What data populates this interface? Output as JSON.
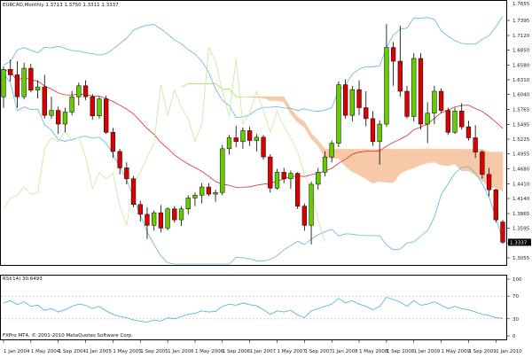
{
  "colors": {
    "background": "#ffffff",
    "bull_candle": "#66cc00",
    "bear_candle": "#dd0000",
    "wick": "#000000",
    "kumo_bull": "#7fe000",
    "kumo_bear": "#f7c9a8",
    "bollinger_band": "#5ab8d8",
    "bollinger_mid": "#d03030",
    "chikou": "#c8e89a",
    "rsi_line": "#5ab8d8",
    "rsi_levels": "#bbbbbb",
    "frame": "#000000",
    "price_marker_bg": "#000000",
    "price_marker_text": "#ffffff"
  },
  "header": {
    "main_title": "EURCAD,Monthly  1.3713 1.3750 1.3311 1.3337",
    "rsi_title": "RSI(14) 30.6493",
    "footer": "FXPro MT4, © 2001-2010 MetaQuotes Software Corp."
  },
  "price_marker": "1.3337",
  "chart_data": {
    "type": "candlestick",
    "title": "EURCAD,Monthly  1.3713 1.3750 1.3311 1.3337",
    "y_axis_ticks": [
      "1.7655",
      "1.7395",
      "1.7120",
      "1.6850",
      "1.6580",
      "1.6310",
      "1.6040",
      "1.5765",
      "1.5495",
      "1.5225",
      "1.4955",
      "1.4680",
      "1.4410",
      "1.4140",
      "1.3865",
      "1.3595",
      "1.3325",
      "1.3055"
    ],
    "ylim": [
      1.3055,
      1.7655
    ],
    "x_axis_labels": [
      "1 Jan 2004",
      "1 May 2004",
      "1 Sep 2004",
      "1 Jan 2005",
      "1 May 2005",
      "1 Sep 2005",
      "1 Jan 2006",
      "1 May 2006",
      "1 Sep 2006",
      "1 Jan 2007",
      "1 May 2007",
      "1 Sep 2007",
      "1 Jan 2008",
      "1 May 2008",
      "1 Sep 2008",
      "1 Jan 2009",
      "1 May 2009",
      "1 Sep 2009",
      "1 Jan 2010"
    ],
    "ohlc": [
      [
        1.6,
        1.655,
        1.58,
        1.65
      ],
      [
        1.65,
        1.668,
        1.628,
        1.64
      ],
      [
        1.64,
        1.665,
        1.58,
        1.6
      ],
      [
        1.6,
        1.662,
        1.595,
        1.652
      ],
      [
        1.652,
        1.66,
        1.608,
        1.612
      ],
      [
        1.612,
        1.63,
        1.597,
        1.618
      ],
      [
        1.618,
        1.64,
        1.56,
        1.566
      ],
      [
        1.566,
        1.6,
        1.56,
        1.575
      ],
      [
        1.575,
        1.582,
        1.532,
        1.55
      ],
      [
        1.55,
        1.58,
        1.535,
        1.572
      ],
      [
        1.572,
        1.61,
        1.566,
        1.6
      ],
      [
        1.6,
        1.626,
        1.584,
        1.62
      ],
      [
        1.62,
        1.63,
        1.594,
        1.6
      ],
      [
        1.6,
        1.605,
        1.558,
        1.565
      ],
      [
        1.565,
        1.6,
        1.56,
        1.596
      ],
      [
        1.596,
        1.602,
        1.532,
        1.535
      ],
      [
        1.535,
        1.543,
        1.488,
        1.5
      ],
      [
        1.5,
        1.505,
        1.458,
        1.47
      ],
      [
        1.47,
        1.48,
        1.44,
        1.45
      ],
      [
        1.45,
        1.455,
        1.398,
        1.403
      ],
      [
        1.403,
        1.41,
        1.372,
        1.385
      ],
      [
        1.385,
        1.398,
        1.34,
        1.365
      ],
      [
        1.365,
        1.392,
        1.355,
        1.388
      ],
      [
        1.388,
        1.402,
        1.352,
        1.36
      ],
      [
        1.36,
        1.398,
        1.356,
        1.395
      ],
      [
        1.395,
        1.4,
        1.37,
        1.375
      ],
      [
        1.375,
        1.4,
        1.364,
        1.395
      ],
      [
        1.395,
        1.42,
        1.385,
        1.415
      ],
      [
        1.415,
        1.425,
        1.4,
        1.42
      ],
      [
        1.42,
        1.442,
        1.405,
        1.435
      ],
      [
        1.435,
        1.442,
        1.418,
        1.422
      ],
      [
        1.422,
        1.43,
        1.408,
        1.425
      ],
      [
        1.425,
        1.512,
        1.42,
        1.505
      ],
      [
        1.505,
        1.53,
        1.494,
        1.525
      ],
      [
        1.525,
        1.547,
        1.508,
        1.518
      ],
      [
        1.518,
        1.544,
        1.505,
        1.538
      ],
      [
        1.538,
        1.545,
        1.51,
        1.52
      ],
      [
        1.52,
        1.532,
        1.5,
        1.526
      ],
      [
        1.526,
        1.53,
        1.485,
        1.49
      ],
      [
        1.49,
        1.495,
        1.425,
        1.433
      ],
      [
        1.433,
        1.468,
        1.43,
        1.462
      ],
      [
        1.462,
        1.47,
        1.442,
        1.45
      ],
      [
        1.45,
        1.465,
        1.432,
        1.46
      ],
      [
        1.46,
        1.462,
        1.395,
        1.4
      ],
      [
        1.4,
        1.405,
        1.355,
        1.365
      ],
      [
        1.365,
        1.445,
        1.33,
        1.44
      ],
      [
        1.44,
        1.47,
        1.43,
        1.462
      ],
      [
        1.462,
        1.5,
        1.455,
        1.49
      ],
      [
        1.49,
        1.52,
        1.48,
        1.515
      ],
      [
        1.515,
        1.628,
        1.508,
        1.622
      ],
      [
        1.622,
        1.632,
        1.56,
        1.566
      ],
      [
        1.566,
        1.62,
        1.555,
        1.613
      ],
      [
        1.613,
        1.63,
        1.566,
        1.58
      ],
      [
        1.58,
        1.61,
        1.546,
        1.56
      ],
      [
        1.56,
        1.574,
        1.51,
        1.518
      ],
      [
        1.518,
        1.557,
        1.476,
        1.55
      ],
      [
        1.55,
        1.733,
        1.545,
        1.69
      ],
      [
        1.69,
        1.7,
        1.62,
        1.665
      ],
      [
        1.665,
        1.73,
        1.6,
        1.61
      ],
      [
        1.61,
        1.62,
        1.56,
        1.564
      ],
      [
        1.564,
        1.68,
        1.555,
        1.67
      ],
      [
        1.67,
        1.68,
        1.54,
        1.55
      ],
      [
        1.55,
        1.59,
        1.515,
        1.57
      ],
      [
        1.57,
        1.62,
        1.55,
        1.61
      ],
      [
        1.61,
        1.615,
        1.57,
        1.575
      ],
      [
        1.575,
        1.58,
        1.53,
        1.535
      ],
      [
        1.535,
        1.58,
        1.532,
        1.574
      ],
      [
        1.574,
        1.588,
        1.54,
        1.545
      ],
      [
        1.545,
        1.556,
        1.52,
        1.525
      ],
      [
        1.525,
        1.548,
        1.488,
        1.499
      ],
      [
        1.499,
        1.502,
        1.45,
        1.458
      ],
      [
        1.458,
        1.47,
        1.418,
        1.43
      ],
      [
        1.43,
        1.432,
        1.37,
        1.375
      ],
      [
        1.371,
        1.375,
        1.331,
        1.334
      ]
    ],
    "rsi": {
      "ylim": [
        0,
        100
      ],
      "ticks": [
        "100",
        "70",
        "30",
        "0"
      ],
      "levels": [
        70,
        30
      ],
      "values": [
        58,
        62,
        55,
        60,
        52,
        54,
        45,
        48,
        42,
        46,
        52,
        56,
        54,
        48,
        52,
        44,
        38,
        34,
        32,
        28,
        26,
        24,
        28,
        26,
        32,
        30,
        34,
        38,
        40,
        44,
        42,
        43,
        52,
        56,
        54,
        58,
        55,
        53,
        46,
        38,
        44,
        42,
        45,
        37,
        32,
        44,
        48,
        52,
        56,
        66,
        58,
        62,
        56,
        52,
        46,
        52,
        68,
        64,
        60,
        52,
        62,
        54,
        56,
        60,
        54,
        48,
        52,
        48,
        46,
        42,
        38,
        36,
        32,
        31
      ]
    }
  }
}
